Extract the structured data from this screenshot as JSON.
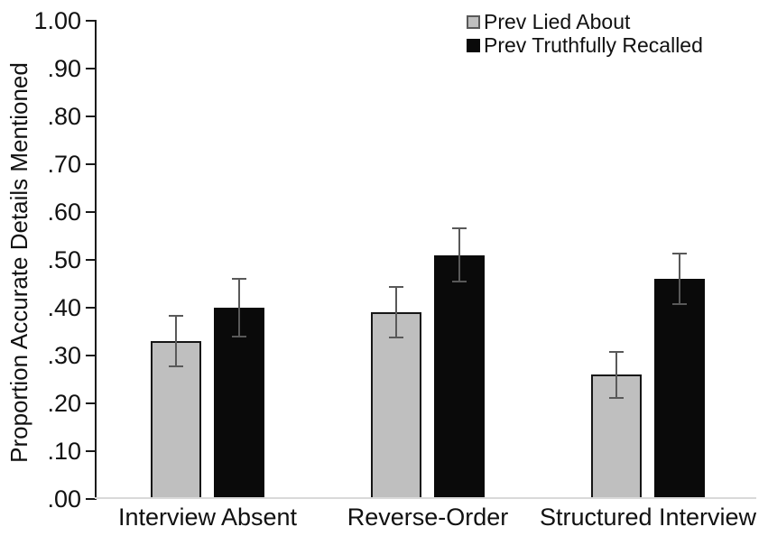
{
  "chart_data": {
    "type": "bar",
    "title": "",
    "xlabel": "",
    "ylabel": "Proportion Accurate Details Mentioned",
    "categories": [
      "Interview Absent",
      "Reverse-Order",
      "Structured Interview"
    ],
    "series": [
      {
        "name": "Prev Lied About",
        "color": "#bfbfbf",
        "border_color": "#161616",
        "values": [
          0.33,
          0.39,
          0.26
        ],
        "errors": [
          0.055,
          0.055,
          0.05
        ]
      },
      {
        "name": "Prev Truthfully Recalled",
        "color": "#0a0a0a",
        "border_color": "#0a0a0a",
        "values": [
          0.4,
          0.51,
          0.46
        ],
        "errors": [
          0.063,
          0.058,
          0.055
        ]
      }
    ],
    "ylim": [
      0.0,
      1.0
    ],
    "ytick_labels": [
      ".00",
      ".10",
      ".20",
      ".30",
      ".40",
      ".50",
      ".60",
      ".70",
      ".80",
      ".90",
      "1.00"
    ],
    "grid": false,
    "legend_position": "top-right",
    "error_bar_color": "#595959",
    "baseline_color": "#d9d9d9"
  }
}
